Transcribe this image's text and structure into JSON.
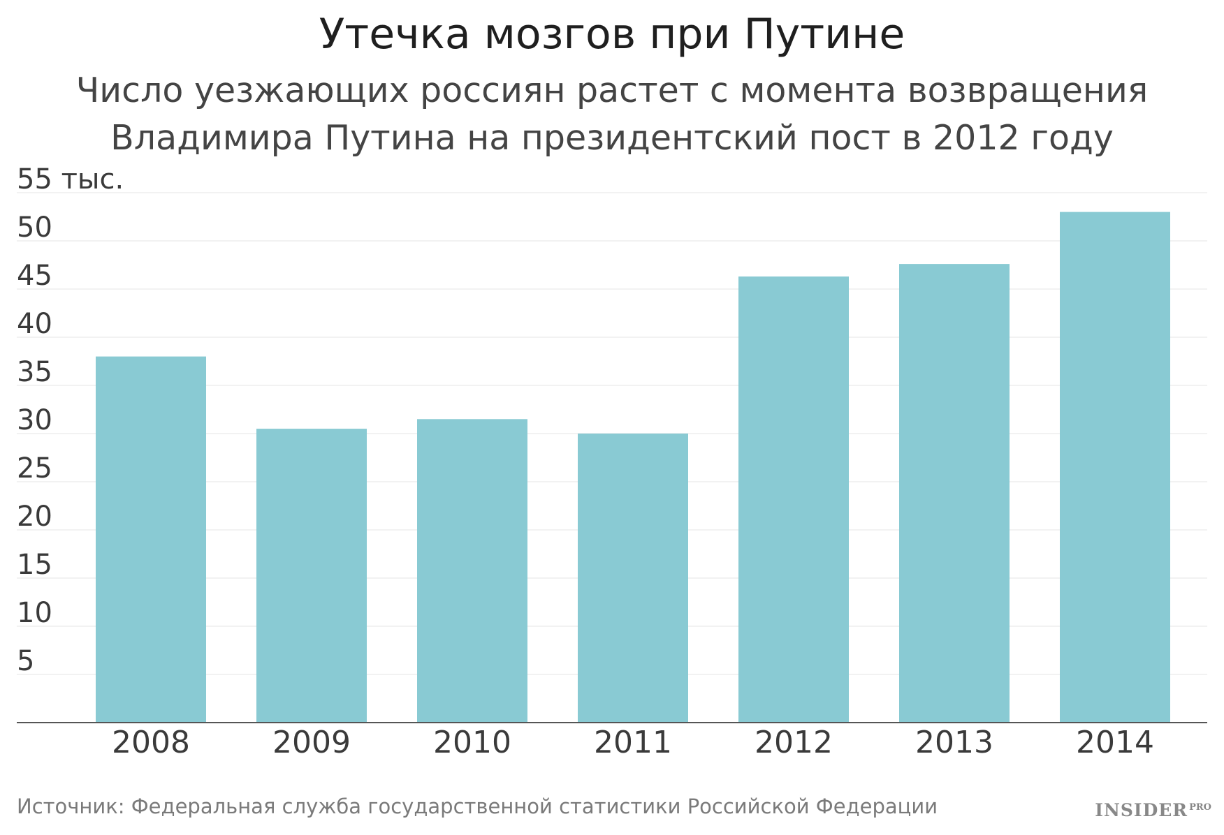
{
  "chart_data": {
    "type": "bar",
    "title": "Утечка мозгов при Путине",
    "subtitle": [
      "Число уезжающих россиян растет с момента возвращения",
      "Владимира Путина на президентский пост в 2012 году"
    ],
    "categories": [
      "2008",
      "2009",
      "2010",
      "2011",
      "2012",
      "2013",
      "2014"
    ],
    "values": [
      38.0,
      30.5,
      31.5,
      30.0,
      46.3,
      47.6,
      53.0
    ],
    "ylim": [
      0,
      55
    ],
    "yticks": [
      5,
      10,
      15,
      20,
      25,
      30,
      35,
      40,
      45,
      50,
      55
    ],
    "ytick_labels": [
      "5",
      "10",
      "15",
      "20",
      "25",
      "30",
      "35",
      "40",
      "45",
      "50",
      "55 тыс."
    ],
    "grid": true,
    "legend": "none",
    "bar_color": "#89cad3"
  },
  "source": "Источник: Федеральная служба государственной статистики Российской Федерации",
  "logo": {
    "text": "INSIDER",
    "suffix": "PRO"
  }
}
